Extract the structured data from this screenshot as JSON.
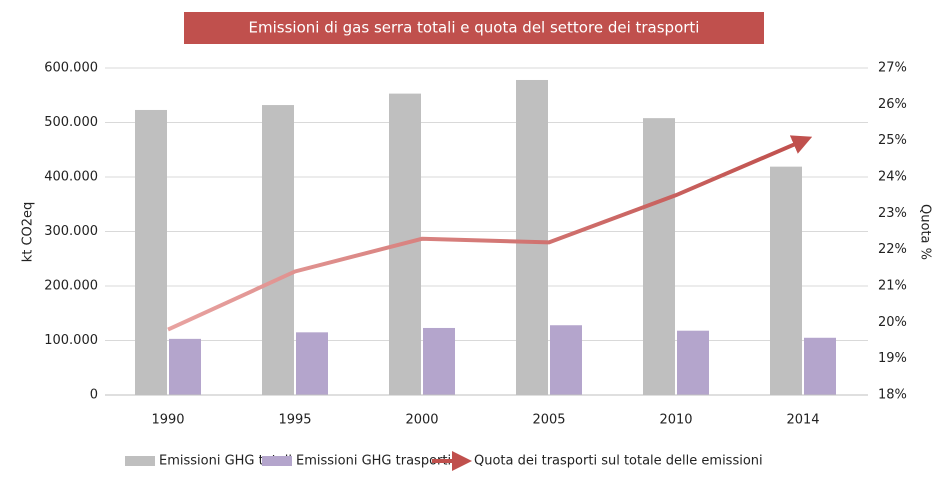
{
  "chart_data": {
    "type": "bar_line",
    "title": "Emissioni  di gas serra totali e quota del settore dei trasporti",
    "categories": [
      "1990",
      "1995",
      "2000",
      "2005",
      "2010",
      "2014"
    ],
    "series": [
      {
        "name": "Emissioni GHG totali",
        "color": "#bfbfbf",
        "values": [
          523000,
          532000,
          553000,
          578000,
          508000,
          419000
        ]
      },
      {
        "name": "Emissioni GHG trasporti",
        "color": "#b4a5cc",
        "values": [
          103000,
          115000,
          123000,
          128000,
          118000,
          105000
        ]
      },
      {
        "name": "Quota dei trasporti sul totale delle emissioni",
        "color": "#c0504d",
        "axis": "y2",
        "values": [
          19.8,
          21.4,
          22.3,
          22.2,
          23.5,
          25.0
        ]
      }
    ],
    "y_label": "kt CO2eq",
    "y2_label": "Quota %",
    "ylim": [
      0,
      600000
    ],
    "yticks": [
      0,
      {
        "value": 100000,
        "label": "100.000"
      },
      {
        "value": 200000,
        "label": "200.000"
      },
      {
        "value": 300000,
        "label": "300.000"
      },
      {
        "value": 400000,
        "label": "400.000"
      },
      {
        "value": 500000,
        "label": "500.000"
      },
      {
        "value": 600000,
        "label": "600.000"
      }
    ],
    "y2lim": [
      18,
      27
    ],
    "y2ticks": [
      {
        "value": 18,
        "label": "18%"
      },
      {
        "value": 19,
        "label": "19%"
      },
      {
        "value": 20,
        "label": "20%"
      },
      {
        "value": 21,
        "label": "21%"
      },
      {
        "value": 22,
        "label": "22%"
      },
      {
        "value": 23,
        "label": "23%"
      },
      {
        "value": 24,
        "label": "24%"
      },
      {
        "value": 25,
        "label": "25%"
      },
      {
        "value": 26,
        "label": "26%"
      },
      {
        "value": 27,
        "label": "27%"
      }
    ],
    "grid": true
  }
}
